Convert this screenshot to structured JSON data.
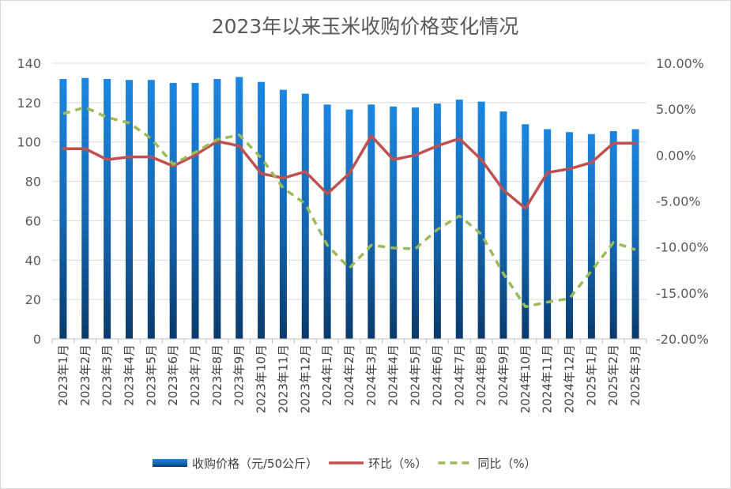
{
  "chart_data": {
    "type": "bar+line",
    "title": "2023年以来玉米收购价格变化情况",
    "categories": [
      "2023年1月",
      "2023年2月",
      "2023年3月",
      "2023年4月",
      "2023年5月",
      "2023年6月",
      "2023年7月",
      "2023年8月",
      "2023年9月",
      "2023年10月",
      "2023年11月",
      "2023年12月",
      "2024年1月",
      "2024年2月",
      "2024年3月",
      "2024年4月",
      "2024年5月",
      "2024年6月",
      "2024年7月",
      "2024年8月",
      "2024年9月",
      "2024年10月",
      "2024年11月",
      "2024年12月",
      "2025年1月",
      "2025年2月",
      "2025年3月"
    ],
    "y_left": {
      "ticks": [
        "0",
        "20",
        "40",
        "60",
        "80",
        "100",
        "120",
        "140"
      ],
      "ylim": [
        0,
        140
      ]
    },
    "y_right": {
      "ticks": [
        "-20.00%",
        "-15.00%",
        "-10.00%",
        "-5.00%",
        "0.00%",
        "5.00%",
        "10.00%"
      ],
      "ylim": [
        -20,
        10
      ]
    },
    "grid": true,
    "legend_position": "bottom",
    "series": [
      {
        "name": "收购价格（元/50公斤）",
        "type": "bar",
        "axis": "left",
        "color": "#1f7fd4",
        "values": [
          132,
          132.5,
          132,
          131.5,
          131.5,
          130,
          130,
          132,
          133,
          130.5,
          126.5,
          124.5,
          119,
          116.5,
          119,
          118,
          117.5,
          119.5,
          121.5,
          120.5,
          115.5,
          109,
          106.5,
          105,
          104,
          105.5,
          106.5
        ]
      },
      {
        "name": "环比（%）",
        "type": "line",
        "axis": "right",
        "color": "#c0504d",
        "values": [
          0.7,
          0.7,
          -0.5,
          -0.2,
          -0.2,
          -1.2,
          0,
          1.5,
          1.0,
          -2.0,
          -2.5,
          -1.8,
          -4.2,
          -2.0,
          2.1,
          -0.5,
          0,
          1.0,
          1.8,
          -0.5,
          -3.8,
          -5.8,
          -1.9,
          -1.5,
          -0.8,
          1.3,
          1.3
        ]
      },
      {
        "name": "同比（%）",
        "type": "line",
        "axis": "right",
        "color": "#9bbb59",
        "dashed": true,
        "values": [
          4.5,
          5.2,
          4.1,
          3.5,
          1.8,
          -1.0,
          0.3,
          1.7,
          2.2,
          -0.3,
          -3.6,
          -5.3,
          -9.8,
          -12.3,
          -9.8,
          -10.1,
          -10.2,
          -8.1,
          -6.6,
          -8.6,
          -12.9,
          -16.5,
          -16.0,
          -15.6,
          -12.6,
          -9.5,
          -10.3
        ]
      }
    ]
  }
}
